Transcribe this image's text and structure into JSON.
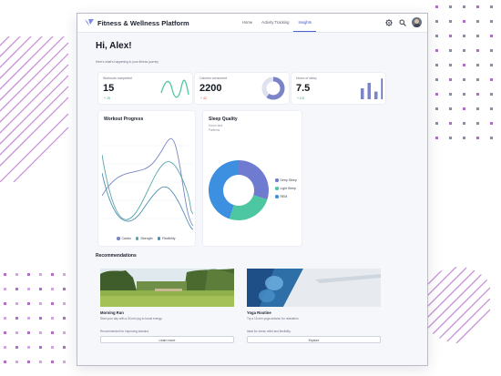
{
  "app": {
    "title": "Fitness & Wellness Platform"
  },
  "nav": {
    "items": [
      "Home",
      "Activity Tracking",
      "Insights"
    ],
    "active": "Insights"
  },
  "header": {
    "icons": [
      "settings-icon",
      "search-icon",
      "user-avatar"
    ]
  },
  "greeting": {
    "title": "Hi, Alex!",
    "subtitle": "Here's what's happening in your fitness journey."
  },
  "stats": [
    {
      "label": "Workouts completed",
      "value": "15",
      "delta": "+ 15",
      "delta_color": "#2ea36b",
      "viz": "wave"
    },
    {
      "label": "Calories consumed",
      "value": "2200",
      "delta": "+ 42",
      "delta_color": "#d9534f",
      "viz": "donut",
      "fill_fraction": 0.6
    },
    {
      "label": "Hours of sleep",
      "value": "7.5",
      "delta": "+ 0.5",
      "delta_color": "#2ea36b",
      "viz": "bars",
      "bar_levels": [
        0.5,
        0.75,
        0.35,
        0.95
      ]
    }
  ],
  "workout_progress": {
    "title": "Workout Progress",
    "legend": [
      {
        "name": "Cardio",
        "color": "#7a84c6"
      },
      {
        "name": "Strength",
        "color": "#5aa7a8"
      },
      {
        "name": "Flexibility",
        "color": "#4f8fb2"
      }
    ]
  },
  "sleep_quality": {
    "title": "Sleep Quality",
    "subtitle_line1": "Hours and",
    "subtitle_line2": "Patterns",
    "segments": [
      {
        "name": "Deep Sleep",
        "color": "#6f7bd1",
        "value": 0.3
      },
      {
        "name": "Light Sleep",
        "color": "#4cc7a2",
        "value": 0.25
      },
      {
        "name": "REM",
        "color": "#3d8fdf",
        "value": 0.45
      }
    ]
  },
  "recommendations": {
    "title": "Recommendations",
    "items": [
      {
        "title": "Morning Run",
        "desc": "Start your day with a 30-min jog to boost energy.",
        "note": "Recommended for improving stamina",
        "button": "Learn more"
      },
      {
        "title": "Yoga Routine",
        "desc": "Try a 15-min yoga session for relaxation.",
        "note": "Ideal for stress relief and flexibility.",
        "button": "Explore"
      }
    ]
  },
  "colors": {
    "accent": "#4766d6",
    "background": "#f6f7fb",
    "decoration": "#b06cc8"
  }
}
